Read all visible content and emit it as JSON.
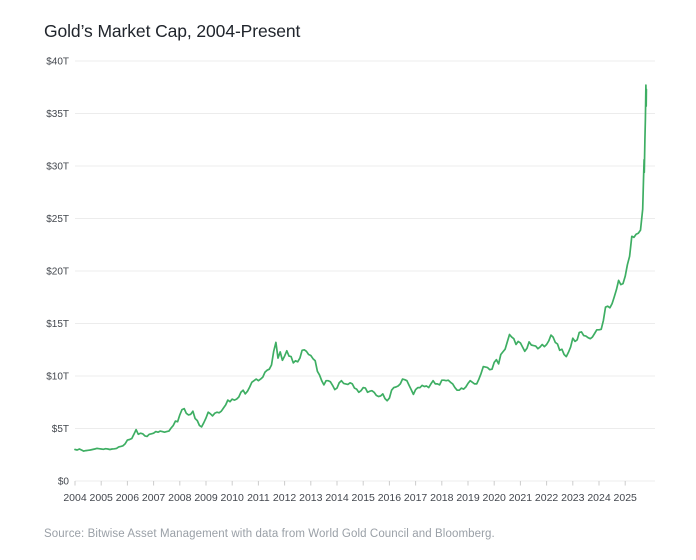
{
  "chart_data": {
    "type": "line",
    "title": "Gold’s Market Cap, 2004-Present",
    "source": "Source: Bitwise Asset Management with data from World Gold Council and Bloomberg.",
    "xlabel": "",
    "ylabel": "",
    "unit": "USD trillions",
    "ylim": [
      0,
      40
    ],
    "xlim": [
      2004,
      2025.85
    ],
    "grid": true,
    "legend": false,
    "line_color": "#3eae63",
    "grid_color": "#ececec",
    "tick_color": "#cccccc",
    "axis_text_color": "#43474e",
    "y_tick_values": [
      0,
      5,
      10,
      15,
      20,
      25,
      30,
      35,
      40
    ],
    "y_tick_labels": [
      "$0",
      "$5T",
      "$10T",
      "$15T",
      "$20T",
      "$25T",
      "$30T",
      "$35T",
      "$40T"
    ],
    "x_tick_years": [
      2004,
      2005,
      2006,
      2007,
      2008,
      2009,
      2010,
      2011,
      2012,
      2013,
      2014,
      2015,
      2016,
      2017,
      2018,
      2019,
      2020,
      2021,
      2022,
      2023,
      2024,
      2025
    ],
    "series": [
      {
        "name": "Gold market cap ($T)",
        "start_year": 2004,
        "interval_months": 1,
        "values": [
          3.0,
          2.95,
          3.05,
          2.95,
          2.85,
          2.9,
          2.92,
          2.95,
          3.0,
          3.05,
          3.1,
          3.08,
          3.05,
          3.02,
          3.08,
          3.05,
          3.0,
          3.05,
          3.07,
          3.1,
          3.25,
          3.3,
          3.35,
          3.55,
          3.9,
          3.95,
          4.05,
          4.45,
          4.9,
          4.45,
          4.55,
          4.5,
          4.3,
          4.25,
          4.45,
          4.5,
          4.55,
          4.7,
          4.65,
          4.75,
          4.7,
          4.65,
          4.7,
          4.75,
          5.05,
          5.3,
          5.7,
          5.65,
          6.3,
          6.8,
          6.9,
          6.45,
          6.3,
          6.35,
          6.65,
          5.95,
          5.75,
          5.3,
          5.15,
          5.55,
          6.0,
          6.55,
          6.4,
          6.2,
          6.45,
          6.55,
          6.5,
          6.65,
          6.95,
          7.25,
          7.7,
          7.55,
          7.8,
          7.7,
          7.8,
          8.0,
          8.45,
          8.65,
          8.3,
          8.55,
          8.95,
          9.4,
          9.55,
          9.7,
          9.55,
          9.7,
          9.9,
          10.35,
          10.55,
          10.65,
          11.05,
          12.35,
          13.2,
          11.7,
          12.3,
          11.5,
          11.9,
          12.4,
          11.9,
          11.85,
          11.25,
          11.45,
          11.35,
          11.7,
          12.45,
          12.5,
          12.35,
          12.05,
          11.95,
          11.65,
          11.45,
          10.45,
          10.1,
          9.55,
          9.15,
          9.55,
          9.55,
          9.45,
          9.1,
          8.7,
          8.85,
          9.35,
          9.55,
          9.3,
          9.25,
          9.2,
          9.35,
          9.25,
          8.85,
          8.75,
          8.45,
          8.6,
          8.9,
          8.85,
          8.45,
          8.55,
          8.6,
          8.45,
          8.15,
          8.05,
          8.1,
          8.3,
          7.85,
          7.65,
          7.9,
          8.65,
          8.9,
          8.95,
          9.05,
          9.25,
          9.7,
          9.65,
          9.55,
          9.1,
          8.7,
          8.25,
          8.7,
          8.9,
          8.9,
          9.1,
          9.0,
          9.05,
          8.9,
          9.25,
          9.55,
          9.25,
          9.25,
          9.15,
          9.6,
          9.6,
          9.55,
          9.6,
          9.4,
          9.25,
          8.9,
          8.65,
          8.65,
          8.85,
          8.75,
          8.95,
          9.3,
          9.55,
          9.4,
          9.25,
          9.25,
          9.7,
          10.25,
          10.9,
          10.85,
          10.8,
          10.6,
          10.65,
          11.3,
          11.55,
          11.15,
          12.05,
          12.3,
          12.55,
          13.25,
          13.95,
          13.7,
          13.55,
          13.0,
          13.3,
          13.15,
          12.75,
          12.35,
          12.65,
          13.25,
          12.95,
          12.9,
          12.85,
          12.6,
          12.75,
          13.0,
          12.8,
          13.0,
          13.35,
          13.9,
          13.7,
          13.2,
          13.05,
          12.45,
          12.55,
          12.05,
          11.85,
          12.25,
          12.75,
          13.6,
          13.3,
          13.45,
          14.15,
          14.2,
          13.85,
          13.8,
          13.65,
          13.55,
          13.7,
          14.05,
          14.4,
          14.4,
          14.45,
          15.3,
          16.55,
          16.65,
          16.5,
          16.9,
          17.55,
          18.25,
          19.1,
          18.7,
          18.8,
          19.5,
          20.6,
          21.4,
          23.3,
          23.2,
          23.5,
          23.6,
          23.9,
          25.9
        ],
        "tail_points": [
          [
            2025.7,
            28.7
          ],
          [
            2025.72,
            30.6
          ],
          [
            2025.73,
            29.4
          ],
          [
            2025.75,
            32.5
          ],
          [
            2025.77,
            34.5
          ],
          [
            2025.79,
            37.7
          ],
          [
            2025.8,
            35.7
          ],
          [
            2025.81,
            37.3
          ]
        ]
      }
    ]
  }
}
